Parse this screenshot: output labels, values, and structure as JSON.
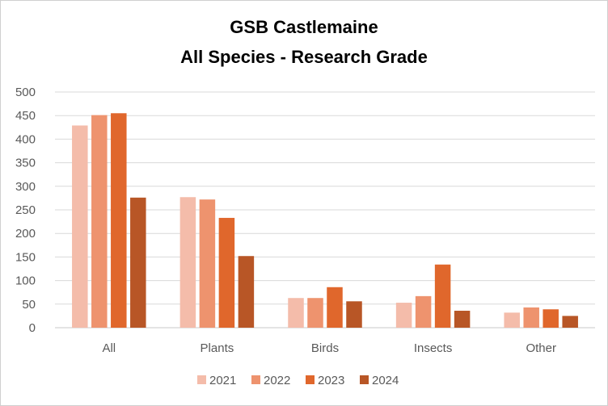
{
  "chart_data": {
    "type": "bar",
    "title": "GSB Castlemaine",
    "subtitle": "All Species - Research Grade",
    "categories": [
      "All",
      "Plants",
      "Birds",
      "Insects",
      "Other"
    ],
    "series": [
      {
        "name": "2021",
        "color": "#f4bcaa",
        "values": [
          429,
          277,
          63,
          53,
          32
        ]
      },
      {
        "name": "2022",
        "color": "#ee936e",
        "values": [
          451,
          272,
          63,
          67,
          43
        ]
      },
      {
        "name": "2023",
        "color": "#e0672c",
        "values": [
          455,
          233,
          86,
          134,
          39
        ]
      },
      {
        "name": "2024",
        "color": "#b85626",
        "values": [
          276,
          152,
          56,
          36,
          25
        ]
      }
    ],
    "ylim": [
      0,
      500
    ],
    "yticks": [
      0,
      50,
      100,
      150,
      200,
      250,
      300,
      350,
      400,
      450,
      500
    ],
    "grid": true,
    "legend_position": "bottom"
  }
}
